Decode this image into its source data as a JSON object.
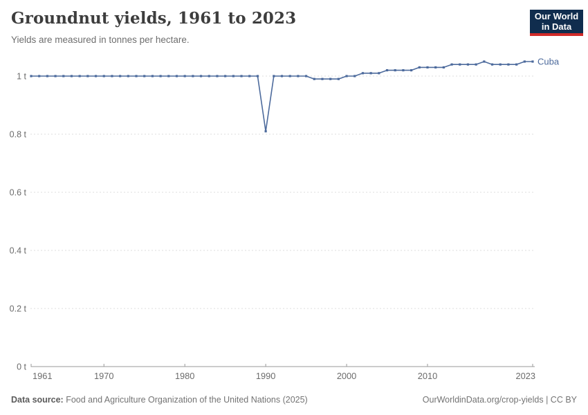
{
  "header": {
    "title": "Groundnut yields, 1961 to 2023",
    "subtitle": "Yields are measured in tonnes per hectare.",
    "logo": {
      "line1": "Our World",
      "line2": "in Data",
      "bg": "#102d4e",
      "accent": "#d12b29"
    }
  },
  "chart_data": {
    "type": "line",
    "title": "Groundnut yields, 1961 to 2023",
    "ylabel": "tonnes per hectare",
    "xlabel": "",
    "grid": "horizontal-dashed",
    "legend": "end-of-line-label",
    "xlim": [
      1961,
      2023
    ],
    "ylim": [
      0,
      1.1
    ],
    "x_ticks": [
      1961,
      1970,
      1980,
      1990,
      2000,
      2010,
      2023
    ],
    "y_ticks": [
      {
        "value": 0,
        "label": "0 t"
      },
      {
        "value": 0.2,
        "label": "0.2 t"
      },
      {
        "value": 0.4,
        "label": "0.4 t"
      },
      {
        "value": 0.6,
        "label": "0.6 t"
      },
      {
        "value": 0.8,
        "label": "0.8 t"
      },
      {
        "value": 1,
        "label": "1 t"
      }
    ],
    "series": [
      {
        "name": "Cuba",
        "color": "#4c6a9c",
        "x": [
          1961,
          1962,
          1963,
          1964,
          1965,
          1966,
          1967,
          1968,
          1969,
          1970,
          1971,
          1972,
          1973,
          1974,
          1975,
          1976,
          1977,
          1978,
          1979,
          1980,
          1981,
          1982,
          1983,
          1984,
          1985,
          1986,
          1987,
          1988,
          1989,
          1990,
          1991,
          1992,
          1993,
          1994,
          1995,
          1996,
          1997,
          1998,
          1999,
          2000,
          2001,
          2002,
          2003,
          2004,
          2005,
          2006,
          2007,
          2008,
          2009,
          2010,
          2011,
          2012,
          2013,
          2014,
          2015,
          2016,
          2017,
          2018,
          2019,
          2020,
          2021,
          2022,
          2023
        ],
        "values": [
          1.0,
          1.0,
          1.0,
          1.0,
          1.0,
          1.0,
          1.0,
          1.0,
          1.0,
          1.0,
          1.0,
          1.0,
          1.0,
          1.0,
          1.0,
          1.0,
          1.0,
          1.0,
          1.0,
          1.0,
          1.0,
          1.0,
          1.0,
          1.0,
          1.0,
          1.0,
          1.0,
          1.0,
          1.0,
          0.81,
          1.0,
          1.0,
          1.0,
          1.0,
          1.0,
          0.99,
          0.99,
          0.99,
          0.99,
          1.0,
          1.0,
          1.01,
          1.01,
          1.01,
          1.02,
          1.02,
          1.02,
          1.02,
          1.03,
          1.03,
          1.03,
          1.03,
          1.04,
          1.04,
          1.04,
          1.04,
          1.05,
          1.04,
          1.04,
          1.04,
          1.04,
          1.05,
          1.05
        ]
      }
    ]
  },
  "footer": {
    "source_label": "Data source:",
    "source_text": " Food and Agriculture Organization of the United Nations (2025)",
    "right_text": "OurWorldinData.org/crop-yields | CC BY"
  },
  "colors": {
    "series_line": "#4c6a9c",
    "grid": "#dddddd",
    "axis": "#999999",
    "tick_label": "#6b6b6b",
    "title": "#3d3d3d",
    "subtitle": "#6e6e6e"
  }
}
